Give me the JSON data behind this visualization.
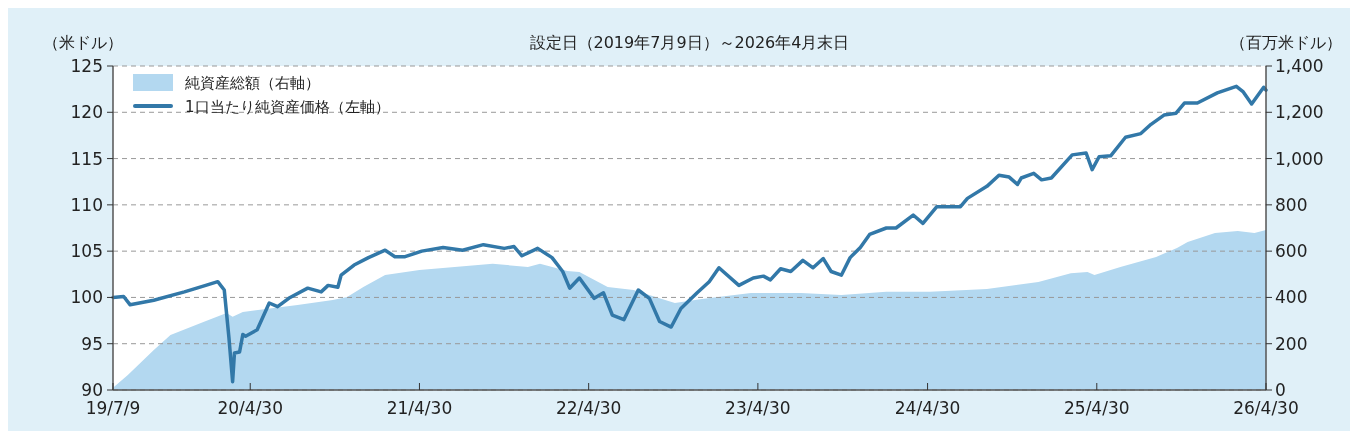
{
  "chart_data": {
    "type": "line",
    "title": "設定日（2019年7月9日）～2026年4月末日",
    "ylabel": "（米ドル）",
    "y2label": "（百万米ドル）",
    "xlim": [
      "2019-07-09",
      "2026-04-30"
    ],
    "xticks": [
      {
        "value": "2019-07-09",
        "label": "19/7/9"
      },
      {
        "value": "2020-04-30",
        "label": "20/4/30"
      },
      {
        "value": "2021-04-30",
        "label": "21/4/30"
      },
      {
        "value": "2022-04-30",
        "label": "22/4/30"
      },
      {
        "value": "2023-04-30",
        "label": "23/4/30"
      },
      {
        "value": "2024-04-30",
        "label": "24/4/30"
      },
      {
        "value": "2025-04-30",
        "label": "25/4/30"
      },
      {
        "value": "2026-04-30",
        "label": "26/4/30"
      }
    ],
    "ylim": [
      90,
      125
    ],
    "yticks": [
      90,
      95,
      100,
      105,
      110,
      115,
      120,
      125
    ],
    "y2lim": [
      0,
      1400
    ],
    "y2ticks": [
      0,
      200,
      400,
      600,
      800,
      {
        "value": 1000,
        "label": "1,000"
      },
      {
        "value": 1200,
        "label": "1,200"
      },
      {
        "value": 1400,
        "label": "1,400"
      }
    ],
    "grid": "y",
    "legend": "top left",
    "series": [
      {
        "name": "純資産総額（右軸）",
        "type": "area",
        "axis": "y2",
        "color": "#b3d8f0",
        "x": [
          "2019-07-09",
          "2019-08-10",
          "2019-10-05",
          "2019-11-10",
          "2020-01-20",
          "2020-03-10",
          "2020-03-23",
          "2020-04-14",
          "2020-08-10",
          "2020-10-25",
          "2020-11-25",
          "2020-12-30",
          "2021-02-15",
          "2021-04-30",
          "2021-07-15",
          "2021-10-05",
          "2021-12-20",
          "2022-01-15",
          "2022-03-15",
          "2022-04-10",
          "2022-06-10",
          "2022-08-05",
          "2022-09-28",
          "2022-11-02",
          "2022-12-30",
          "2023-04-15",
          "2023-08-01",
          "2023-10-27",
          "2024-02-01",
          "2024-05-05",
          "2024-09-05",
          "2024-12-25",
          "2025-03-05",
          "2025-04-10",
          "2025-04-25",
          "2025-06-20",
          "2025-09-05",
          "2025-10-20",
          "2025-11-12",
          "2026-01-10",
          "2026-02-28",
          "2026-04-05",
          "2026-04-30"
        ],
        "values": [
          10,
          65,
          173,
          238,
          294,
          333,
          316,
          337,
          367,
          389,
          402,
          445,
          497,
          519,
          531,
          545,
          532,
          545,
          514,
          510,
          445,
          432,
          398,
          376,
          393,
          419,
          419,
          411,
          424,
          424,
          436,
          467,
          505,
          510,
          497,
          532,
          575,
          614,
          640,
          678,
          687,
          678,
          691
        ]
      },
      {
        "name": "1口当たり純資産価格（左軸）",
        "axis": "y",
        "color": "#3278a8",
        "x": [
          "2019-07-09",
          "2019-08-01",
          "2019-08-15",
          "2019-10-05",
          "2019-12-10",
          "2020-01-25",
          "2020-02-20",
          "2020-03-05",
          "2020-03-15",
          "2020-03-23",
          "2020-03-27",
          "2020-04-07",
          "2020-04-14",
          "2020-04-20",
          "2020-05-15",
          "2020-06-10",
          "2020-06-28",
          "2020-07-25",
          "2020-09-01",
          "2020-09-30",
          "2020-10-15",
          "2020-11-05",
          "2020-11-12",
          "2020-12-10",
          "2021-01-10",
          "2021-02-15",
          "2021-03-08",
          "2021-03-30",
          "2021-05-05",
          "2021-06-20",
          "2021-08-01",
          "2021-09-15",
          "2021-10-30",
          "2021-11-20",
          "2021-12-07",
          "2022-01-10",
          "2022-02-10",
          "2022-03-05",
          "2022-03-20",
          "2022-04-10",
          "2022-05-12",
          "2022-06-01",
          "2022-06-20",
          "2022-07-15",
          "2022-08-15",
          "2022-09-08",
          "2022-09-30",
          "2022-10-25",
          "2022-11-15",
          "2022-12-20",
          "2023-01-15",
          "2023-02-05",
          "2023-03-20",
          "2023-04-20",
          "2023-05-12",
          "2023-05-27",
          "2023-06-18",
          "2023-07-10",
          "2023-08-05",
          "2023-08-27",
          "2023-09-18",
          "2023-10-05",
          "2023-10-27",
          "2023-11-15",
          "2023-12-07",
          "2023-12-27",
          "2024-02-01",
          "2024-02-22",
          "2024-03-30",
          "2024-04-20",
          "2024-05-20",
          "2024-07-10",
          "2024-07-25",
          "2024-09-05",
          "2024-10-01",
          "2024-10-23",
          "2024-11-10",
          "2024-11-18",
          "2024-12-15",
          "2025-01-01",
          "2025-01-22",
          "2025-03-08",
          "2025-04-07",
          "2025-04-20",
          "2025-05-05",
          "2025-05-30",
          "2025-07-01",
          "2025-08-03",
          "2025-08-25",
          "2025-09-22",
          "2025-10-18",
          "2025-11-05",
          "2025-12-03",
          "2026-01-15",
          "2026-02-25",
          "2026-03-12",
          "2026-03-30",
          "2026-04-25",
          "2026-04-30"
        ],
        "values": [
          100.0,
          100.1,
          99.2,
          99.7,
          100.6,
          101.3,
          101.7,
          100.8,
          95.7,
          90.9,
          94.0,
          94.1,
          96.0,
          95.8,
          96.5,
          99.4,
          99.0,
          100.0,
          101.0,
          100.6,
          101.3,
          101.1,
          102.4,
          103.5,
          104.3,
          105.1,
          104.4,
          104.4,
          105.0,
          105.4,
          105.1,
          105.7,
          105.3,
          105.5,
          104.5,
          105.3,
          104.3,
          102.8,
          101.0,
          102.1,
          99.9,
          100.5,
          98.1,
          97.6,
          100.8,
          99.9,
          97.4,
          96.8,
          98.8,
          100.5,
          101.7,
          103.2,
          101.3,
          102.1,
          102.3,
          101.9,
          103.1,
          102.8,
          104.0,
          103.2,
          104.2,
          102.8,
          102.4,
          104.3,
          105.4,
          106.8,
          107.5,
          107.5,
          108.9,
          108.0,
          109.8,
          109.8,
          110.7,
          112.0,
          113.2,
          113.0,
          112.2,
          112.9,
          113.4,
          112.7,
          112.9,
          115.4,
          115.6,
          113.8,
          115.2,
          115.3,
          117.3,
          117.7,
          118.7,
          119.7,
          119.9,
          121.0,
          121.0,
          122.1,
          122.8,
          122.2,
          120.9,
          122.7,
          122.4
        ]
      }
    ]
  }
}
